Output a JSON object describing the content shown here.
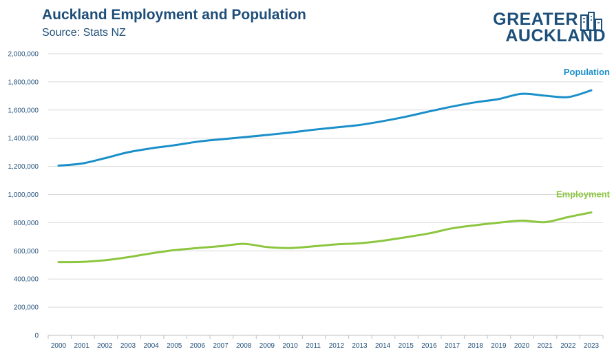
{
  "header": {
    "title": "Auckland Employment and Population",
    "subtitle": "Source: Stats NZ"
  },
  "logo": {
    "line1": "GREATER",
    "line2": "AUCKLAND",
    "icon": "buildings-icon",
    "color": "#1c4f7a"
  },
  "chart_data": {
    "type": "line",
    "title": "Auckland Employment and Population",
    "subtitle": "Source: Stats NZ",
    "xlabel": "",
    "ylabel": "",
    "ylim": [
      0,
      2000000
    ],
    "yticks": [
      0,
      200000,
      400000,
      600000,
      800000,
      1000000,
      1200000,
      1400000,
      1600000,
      1800000,
      2000000
    ],
    "ytick_labels": [
      "0",
      "200,000",
      "400,000",
      "600,000",
      "800,000",
      "1,000,000",
      "1,200,000",
      "1,400,000",
      "1,600,000",
      "1,800,000",
      "2,000,000"
    ],
    "x": [
      "2000",
      "2001",
      "2002",
      "2003",
      "2004",
      "2005",
      "2006",
      "2007",
      "2008",
      "2009",
      "2010",
      "2011",
      "2012",
      "2013",
      "2014",
      "2015",
      "2016",
      "2017",
      "2018",
      "2019",
      "2020",
      "2021",
      "2022",
      "2023"
    ],
    "grid": true,
    "legend": "direct labels at line ends",
    "series": [
      {
        "name": "Population",
        "color": "#1a8fc9",
        "values": [
          1205000,
          1220000,
          1258000,
          1300000,
          1328000,
          1350000,
          1375000,
          1392000,
          1407000,
          1423000,
          1440000,
          1460000,
          1477000,
          1494000,
          1521000,
          1553000,
          1590000,
          1625000,
          1655000,
          1678000,
          1715000,
          1702000,
          1692000,
          1740000
        ]
      },
      {
        "name": "Employment",
        "color": "#8cc63f",
        "values": [
          520000,
          522000,
          533000,
          555000,
          582000,
          605000,
          620000,
          633000,
          650000,
          627000,
          620000,
          632000,
          646000,
          654000,
          672000,
          697000,
          724000,
          760000,
          782000,
          800000,
          815000,
          804000,
          840000,
          873000
        ]
      }
    ]
  }
}
